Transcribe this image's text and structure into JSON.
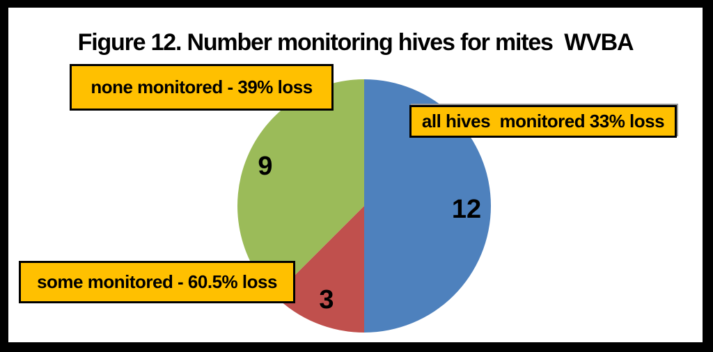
{
  "figure": {
    "title": "Figure 12. Number monitoring hives for mites  WVBA"
  },
  "callouts": {
    "none_monitored": "none monitored - 39% loss",
    "all_monitored": "all hives  monitored 33% loss",
    "some_monitored": "some monitored - 60.5% loss"
  },
  "chart_data": {
    "type": "pie",
    "title": "Figure 12. Number monitoring hives for mites  WVBA",
    "total": 24,
    "start_angle": "12 o'clock",
    "direction": "clockwise",
    "legend_position": "callout boxes around pie",
    "slices": [
      {
        "category": "all hives monitored",
        "loss": "33% loss",
        "value": 12,
        "data_label": "12",
        "color": "#4e81bd"
      },
      {
        "category": "some monitored",
        "loss": "60.5% loss",
        "value": 3,
        "data_label": "3",
        "color": "#c0504d"
      },
      {
        "category": "none monitored",
        "loss": "39% loss",
        "value": 9,
        "data_label": "9",
        "color": "#9bbb59"
      }
    ]
  },
  "colors": {
    "callout_background": "#ffc000",
    "callout_border": "#000000",
    "frame": "#000000",
    "plot_background": "#ffffff",
    "slice_blue": "#4e81bd",
    "slice_red": "#c0504d",
    "slice_green": "#9bbb59"
  }
}
